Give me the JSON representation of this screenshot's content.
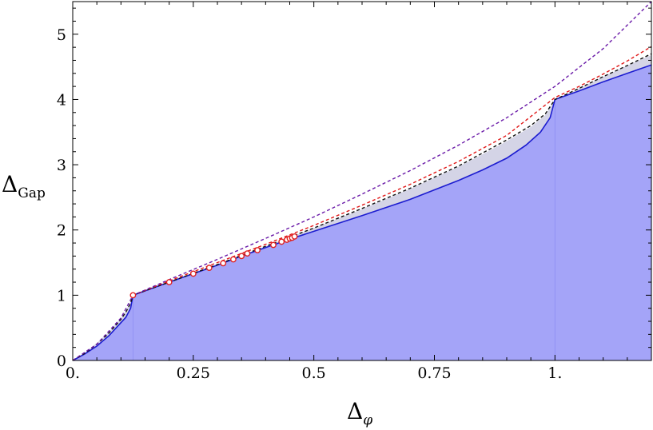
{
  "chart_data": {
    "type": "area",
    "xlabel": {
      "main": "Δ",
      "sub": "φ"
    },
    "ylabel": {
      "main": "Δ",
      "sub": "Gap"
    },
    "xlim": [
      0,
      1.2
    ],
    "ylim": [
      0,
      5.5
    ],
    "x_ticks": [
      {
        "value": 0,
        "label": "0."
      },
      {
        "value": 0.25,
        "label": "0.25"
      },
      {
        "value": 0.5,
        "label": "0.5"
      },
      {
        "value": 0.75,
        "label": "0.75"
      },
      {
        "value": 1,
        "label": "1."
      }
    ],
    "y_ticks": [
      {
        "value": 0,
        "label": "0"
      },
      {
        "value": 1,
        "label": "1"
      },
      {
        "value": 2,
        "label": "2"
      },
      {
        "value": 3,
        "label": "3"
      },
      {
        "value": 4,
        "label": "4"
      },
      {
        "value": 5,
        "label": "5"
      }
    ],
    "colors": {
      "allowed_fill": "#a4a4f8",
      "grey_band": "#d4d4e6",
      "bound_line": "#1c1cd0",
      "black_dashed": "#111111",
      "red_dashed": "#e01818",
      "purple_dashed": "#6a1aa8",
      "marker_fill": "#ffffff",
      "marker_edge": "#e02020"
    },
    "series": [
      {
        "style": "filled-boundary",
        "color": "#1c1cd0",
        "x": [
          0,
          0.025,
          0.05,
          0.075,
          0.1,
          0.11,
          0.12,
          0.125,
          0.2,
          0.25,
          0.3,
          0.35,
          0.4,
          0.45,
          0.5,
          0.6,
          0.7,
          0.8,
          0.85,
          0.9,
          0.94,
          0.97,
          0.99,
          1,
          1.05,
          1.1,
          1.15,
          1.2
        ],
        "values": [
          0,
          0.1,
          0.22,
          0.38,
          0.58,
          0.66,
          0.8,
          1,
          1.2,
          1.33,
          1.46,
          1.6,
          1.73,
          1.86,
          1.98,
          2.22,
          2.47,
          2.76,
          2.92,
          3.1,
          3.3,
          3.5,
          3.72,
          4,
          4.13,
          4.27,
          4.4,
          4.53
        ]
      },
      {
        "style": "grey-band-top",
        "color": "#d4d4e6",
        "x": [
          0,
          0.025,
          0.05,
          0.075,
          0.1,
          0.11,
          0.12,
          0.125,
          0.2,
          0.25,
          0.3,
          0.35,
          0.4,
          0.45,
          0.5,
          0.6,
          0.7,
          0.8,
          0.85,
          0.9,
          0.95,
          0.98,
          1,
          1.05,
          1.1,
          1.15,
          1.2
        ],
        "values": [
          0,
          0.12,
          0.27,
          0.44,
          0.65,
          0.76,
          0.9,
          1,
          1.2,
          1.33,
          1.47,
          1.61,
          1.75,
          1.89,
          2.03,
          2.32,
          2.63,
          2.97,
          3.16,
          3.36,
          3.58,
          3.76,
          4,
          4.17,
          4.35,
          4.52,
          4.68
        ]
      },
      {
        "style": "dashed",
        "color": "#111111",
        "x": [
          0,
          0.025,
          0.05,
          0.075,
          0.1,
          0.11,
          0.12,
          0.125,
          0.2,
          0.3,
          0.4,
          0.5,
          0.6,
          0.7,
          0.8,
          0.9,
          0.95,
          0.98,
          1,
          1.05,
          1.1,
          1.15,
          1.2
        ],
        "values": [
          0,
          0.11,
          0.25,
          0.42,
          0.63,
          0.74,
          0.88,
          1,
          1.2,
          1.47,
          1.75,
          2.03,
          2.33,
          2.64,
          2.98,
          3.38,
          3.6,
          3.78,
          4,
          4.17,
          4.35,
          4.52,
          4.7
        ]
      },
      {
        "style": "dashed",
        "color": "#e01818",
        "x": [
          0.125,
          0.2,
          0.3,
          0.4,
          0.5,
          0.6,
          0.7,
          0.8,
          0.9,
          1,
          1.05,
          1.1,
          1.15,
          1.2
        ],
        "values": [
          1,
          1.22,
          1.5,
          1.78,
          2.07,
          2.38,
          2.7,
          3.05,
          3.45,
          4.03,
          4.2,
          4.39,
          4.59,
          4.81
        ]
      },
      {
        "style": "dashed",
        "color": "#6a1aa8",
        "x": [
          0,
          0.05,
          0.1,
          0.125,
          0.2,
          0.3,
          0.4,
          0.5,
          0.6,
          0.7,
          0.8,
          0.9,
          1,
          1.1,
          1.2
        ],
        "values": [
          0,
          0.25,
          0.65,
          1,
          1.24,
          1.55,
          1.87,
          2.2,
          2.55,
          2.91,
          3.3,
          3.72,
          4.2,
          4.78,
          5.5
        ]
      },
      {
        "style": "markers",
        "color": "#e02020",
        "x": [
          0.125,
          0.2,
          0.25,
          0.283,
          0.312,
          0.333,
          0.35,
          0.362,
          0.383,
          0.416,
          0.433,
          0.444,
          0.45,
          0.455,
          0.46
        ],
        "values": [
          1,
          1.2,
          1.33,
          1.42,
          1.49,
          1.55,
          1.6,
          1.64,
          1.69,
          1.77,
          1.82,
          1.85,
          1.87,
          1.88,
          1.9
        ]
      }
    ]
  }
}
